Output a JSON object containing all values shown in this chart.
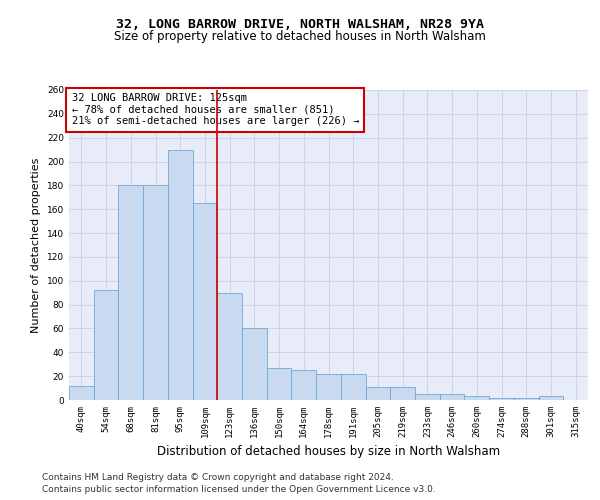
{
  "title_line1": "32, LONG BARROW DRIVE, NORTH WALSHAM, NR28 9YA",
  "title_line2": "Size of property relative to detached houses in North Walsham",
  "xlabel": "Distribution of detached houses by size in North Walsham",
  "ylabel": "Number of detached properties",
  "categories": [
    "40sqm",
    "54sqm",
    "68sqm",
    "81sqm",
    "95sqm",
    "109sqm",
    "123sqm",
    "136sqm",
    "150sqm",
    "164sqm",
    "178sqm",
    "191sqm",
    "205sqm",
    "219sqm",
    "233sqm",
    "246sqm",
    "260sqm",
    "274sqm",
    "288sqm",
    "301sqm",
    "315sqm"
  ],
  "values": [
    12,
    92,
    180,
    180,
    210,
    165,
    90,
    60,
    27,
    25,
    22,
    22,
    11,
    11,
    5,
    5,
    3,
    2,
    2,
    3,
    0
  ],
  "bar_color": "#c9d9f0",
  "bar_edge_color": "#6fa8d6",
  "vline_position": 6,
  "vline_color": "#cc0000",
  "annotation_text": "32 LONG BARROW DRIVE: 125sqm\n← 78% of detached houses are smaller (851)\n21% of semi-detached houses are larger (226) →",
  "annotation_box_color": "#ffffff",
  "annotation_box_edge": "#cc0000",
  "ylim": [
    0,
    260
  ],
  "yticks": [
    0,
    20,
    40,
    60,
    80,
    100,
    120,
    140,
    160,
    180,
    200,
    220,
    240,
    260
  ],
  "grid_color": "#c8d0e8",
  "bg_color": "#e8ecf8",
  "footer1": "Contains HM Land Registry data © Crown copyright and database right 2024.",
  "footer2": "Contains public sector information licensed under the Open Government Licence v3.0.",
  "title_fontsize": 9.5,
  "subtitle_fontsize": 8.5,
  "ylabel_fontsize": 8,
  "xlabel_fontsize": 8.5,
  "tick_fontsize": 6.5,
  "annotation_fontsize": 7.5,
  "footer_fontsize": 6.5
}
